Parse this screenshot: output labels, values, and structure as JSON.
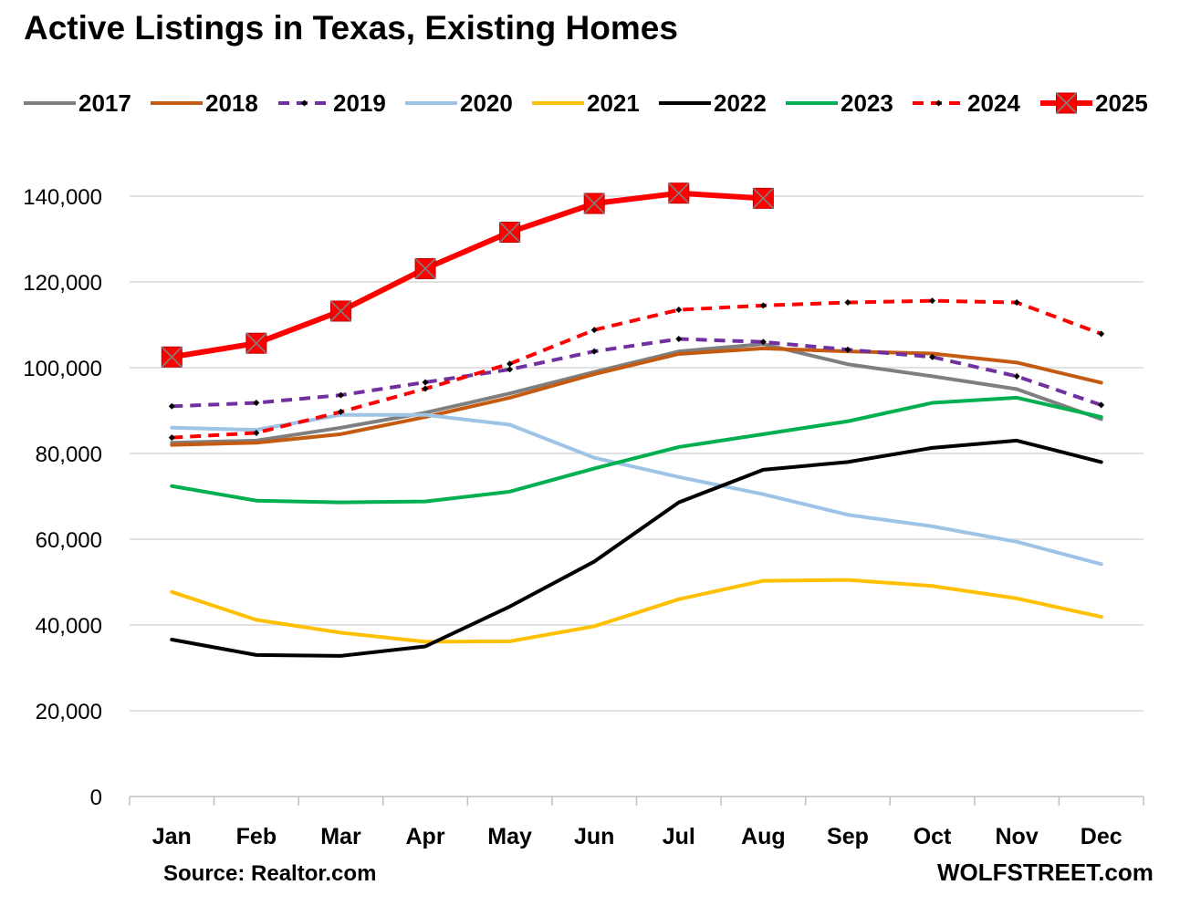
{
  "title": "Active Listings in Texas, Existing Homes",
  "source": "Source: Realtor.com",
  "brand": "WOLFSTREET.com",
  "chart_data": {
    "type": "line",
    "title": "Active Listings in Texas, Existing Homes",
    "xlabel": "",
    "ylabel": "",
    "ylim": [
      0,
      140000
    ],
    "y_ticks": [
      0,
      20000,
      40000,
      60000,
      80000,
      100000,
      120000,
      140000
    ],
    "y_tick_labels": [
      "0",
      "20,000",
      "40,000",
      "60,000",
      "80,000",
      "100,000",
      "120,000",
      "140,000"
    ],
    "grid": "horizontal",
    "legend_position": "top",
    "categories": [
      "Jan",
      "Feb",
      "Mar",
      "Apr",
      "May",
      "Jun",
      "Jul",
      "Aug",
      "Sep",
      "Oct",
      "Nov",
      "Dec"
    ],
    "series": [
      {
        "name": "2017",
        "color": "#7f7f7f",
        "style": "solid",
        "marker": "none",
        "values": [
          82500,
          83000,
          86000,
          89500,
          94000,
          99000,
          103800,
          105500,
          100800,
          98000,
          95000,
          88000
        ]
      },
      {
        "name": "2018",
        "color": "#c55a11",
        "style": "solid",
        "marker": "none",
        "values": [
          82000,
          82500,
          84500,
          88500,
          93000,
          98500,
          103200,
          104500,
          103800,
          103300,
          101200,
          96500
        ]
      },
      {
        "name": "2019",
        "color": "#7030a0",
        "style": "dashed",
        "marker": "diamond",
        "values": [
          91000,
          91800,
          93600,
          96600,
          99600,
          103800,
          106700,
          106000,
          104200,
          102500,
          98000,
          91300
        ]
      },
      {
        "name": "2020",
        "color": "#9dc3e6",
        "style": "solid",
        "marker": "none",
        "values": [
          86000,
          85500,
          89000,
          89000,
          86700,
          79000,
          74500,
          70500,
          65700,
          63000,
          59400,
          54200
        ]
      },
      {
        "name": "2021",
        "color": "#ffc000",
        "style": "solid",
        "marker": "none",
        "values": [
          47700,
          41200,
          38200,
          36100,
          36200,
          39700,
          46000,
          50300,
          50500,
          49100,
          46200,
          41900
        ]
      },
      {
        "name": "2022",
        "color": "#000000",
        "style": "solid",
        "marker": "none",
        "values": [
          36600,
          33000,
          32800,
          35000,
          44300,
          54800,
          68600,
          76200,
          78000,
          81300,
          83000,
          78000
        ]
      },
      {
        "name": "2023",
        "color": "#00b050",
        "style": "solid",
        "marker": "none",
        "values": [
          72400,
          69000,
          68600,
          68800,
          71100,
          76500,
          81500,
          84500,
          87500,
          91800,
          93000,
          88500
        ]
      },
      {
        "name": "2024",
        "color": "#ff0000",
        "style": "dashed",
        "marker": "diamond",
        "values": [
          83700,
          84800,
          89700,
          95100,
          100900,
          108800,
          113500,
          114500,
          115200,
          115600,
          115200,
          107900
        ]
      },
      {
        "name": "2025",
        "color": "#ff0000",
        "style": "solid",
        "marker": "square-x",
        "values": [
          102500,
          105700,
          113200,
          123100,
          131600,
          138300,
          140700,
          139500,
          null,
          null,
          null,
          null
        ]
      }
    ]
  }
}
